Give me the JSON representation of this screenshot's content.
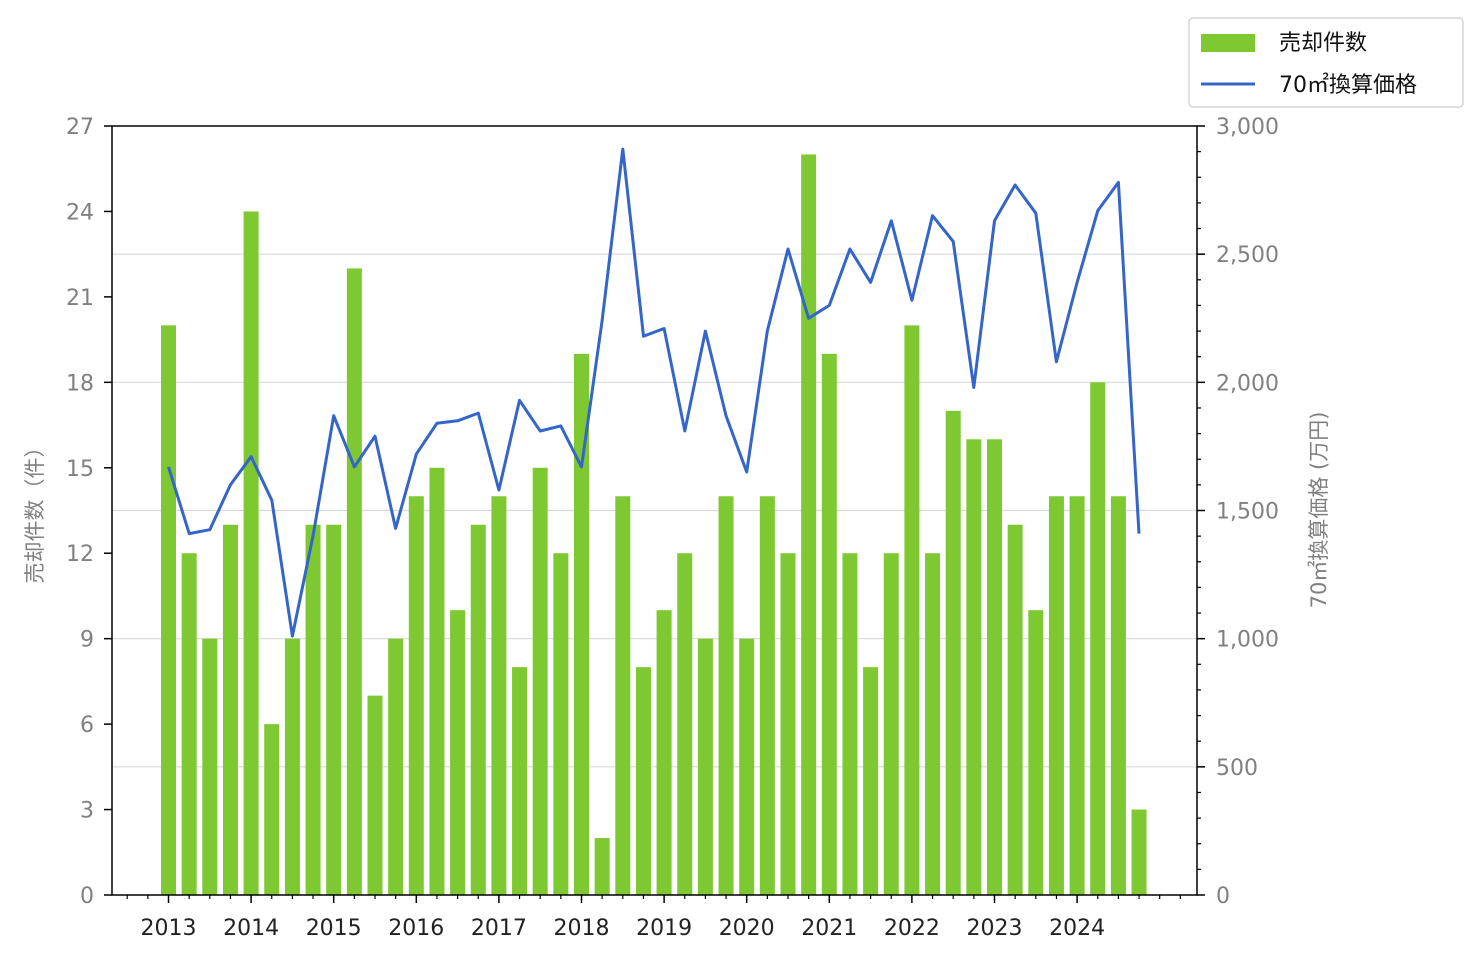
{
  "chart_data": {
    "type": "bar",
    "title": "",
    "x_tick_labels": [
      "2013",
      "2014",
      "2015",
      "2016",
      "2017",
      "2018",
      "2019",
      "2020",
      "2021",
      "2022",
      "2023",
      "2024"
    ],
    "ylabel_left": "売却件数（件）",
    "ylabel_right": "70㎡換算価格 (万円)",
    "ylim_left": [
      0,
      27
    ],
    "ylim_right": [
      0,
      3000
    ],
    "yticks_left": [
      "0",
      "3",
      "6",
      "9",
      "12",
      "15",
      "18",
      "21",
      "24",
      "27"
    ],
    "yticks_right": [
      "0",
      "500",
      "1,000",
      "1,500",
      "2,000",
      "2,500",
      "3,000"
    ],
    "grid": "horizontal (right axis ticks)",
    "legend_position": "top-right",
    "colors": {
      "bars": "#7ec832",
      "line": "#3465c8",
      "grid": "#d9d9d9"
    },
    "series": [
      {
        "name": "売却件数",
        "type": "bar",
        "axis": "left",
        "values": [
          20,
          12,
          9,
          13,
          24,
          6,
          9,
          13,
          13,
          22,
          7,
          9,
          14,
          15,
          10,
          13,
          14,
          8,
          15,
          12,
          19,
          2,
          14,
          8,
          10,
          12,
          9,
          14,
          9,
          14,
          12,
          26,
          19,
          12,
          8,
          12,
          20,
          12,
          17,
          16,
          16,
          13,
          10,
          14,
          14,
          18,
          14,
          3
        ]
      },
      {
        "name": "70㎡換算価格",
        "type": "line",
        "axis": "right",
        "values": [
          1670,
          1410,
          1425,
          1600,
          1710,
          1540,
          1010,
          1400,
          1870,
          1670,
          1790,
          1430,
          1720,
          1840,
          1850,
          1880,
          1580,
          1930,
          1810,
          1830,
          1670,
          2240,
          2910,
          2180,
          2210,
          1810,
          2200,
          1870,
          1650,
          2200,
          2520,
          2250,
          2300,
          2520,
          2390,
          2630,
          2320,
          2650,
          2550,
          1980,
          2630,
          2770,
          2660,
          2080,
          2390,
          2670,
          2780,
          1410
        ]
      }
    ]
  }
}
